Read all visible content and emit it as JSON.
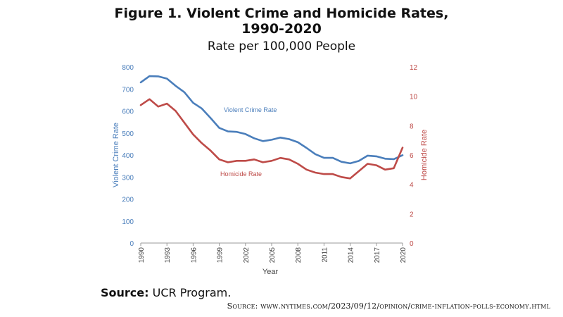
{
  "title_line1": "Figure 1. Violent Crime and Homicide Rates,",
  "title_line2": "1990-2020",
  "subtitle": "Rate per 100,000 People",
  "source_label": "Source:",
  "source_text": "UCR Program.",
  "credit": "Source: www.nytimes.com/2023/09/12/opinion/crime-inflation-polls-economy.html",
  "chart_data": {
    "type": "line",
    "x": [
      1990,
      1991,
      1992,
      1993,
      1994,
      1995,
      1996,
      1997,
      1998,
      1999,
      2000,
      2001,
      2002,
      2003,
      2004,
      2005,
      2006,
      2007,
      2008,
      2009,
      2010,
      2011,
      2012,
      2013,
      2014,
      2015,
      2016,
      2017,
      2018,
      2019,
      2020
    ],
    "xticks": [
      "1990",
      "1993",
      "1996",
      "1999",
      "2002",
      "2005",
      "2008",
      "2011",
      "2014",
      "2017",
      "2020"
    ],
    "xlabel": "Year",
    "ylabel_left": "Violent Crime Rate",
    "ylabel_right": "Homicide Rate",
    "ylim_left": [
      0,
      800
    ],
    "ylim_right": [
      0,
      12
    ],
    "yticks_left": [
      "0",
      "100",
      "200",
      "300",
      "400",
      "500",
      "600",
      "700",
      "800"
    ],
    "yticks_right": [
      "0",
      "2",
      "4",
      "6",
      "8",
      "10",
      "12"
    ],
    "grid": false,
    "series": [
      {
        "name": "Violent Crime Rate",
        "axis": "left",
        "color": "#4a7ebb",
        "values": [
          730,
          758,
          757,
          747,
          714,
          685,
          637,
          611,
          568,
          523,
          507,
          505,
          495,
          476,
          463,
          469,
          479,
          472,
          458,
          432,
          404,
          387,
          387,
          369,
          362,
          373,
          397,
          394,
          383,
          381,
          399
        ]
      },
      {
        "name": "Homicide Rate",
        "axis": "right",
        "color": "#be4b48",
        "values": [
          9.4,
          9.8,
          9.3,
          9.5,
          9.0,
          8.2,
          7.4,
          6.8,
          6.3,
          5.7,
          5.5,
          5.6,
          5.6,
          5.7,
          5.5,
          5.6,
          5.8,
          5.7,
          5.4,
          5.0,
          4.8,
          4.7,
          4.7,
          4.5,
          4.4,
          4.9,
          5.4,
          5.3,
          5.0,
          5.1,
          6.5
        ]
      }
    ]
  }
}
